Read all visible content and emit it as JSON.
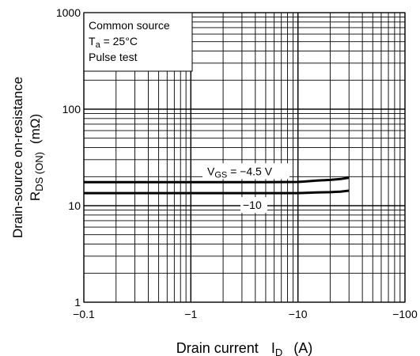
{
  "chart_data": {
    "type": "line",
    "x_scale": "log",
    "y_scale": "log",
    "xlim": [
      -0.1,
      -100
    ],
    "ylim": [
      1,
      1000
    ],
    "x_ticks": [
      {
        "value": -0.1,
        "label": "−0.1"
      },
      {
        "value": -1,
        "label": "−1"
      },
      {
        "value": -10,
        "label": "−10"
      },
      {
        "value": -100,
        "label": "−100"
      }
    ],
    "y_ticks": [
      {
        "value": 1,
        "label": "1"
      },
      {
        "value": 10,
        "label": "10"
      },
      {
        "value": 100,
        "label": "100"
      },
      {
        "value": 1000,
        "label": "1000"
      }
    ],
    "grid": true,
    "xlabel": {
      "main": "Drain current",
      "symbol": "I",
      "sub": "D",
      "unit": "(A)"
    },
    "ylabel": {
      "line1": "Drain-source on-resistance",
      "line2_symbol": "R",
      "line2_sub": "DS (ON)",
      "line2_unit": "(mΩ)"
    },
    "conditions": {
      "line1": "Common source",
      "line2_symbol": "T",
      "line2_sub": "a",
      "line2_rest": " = 25°C",
      "line3": "Pulse test"
    },
    "series": [
      {
        "label_symbol": "V",
        "label_sub": "GS",
        "label_rest": " = −4.5 V",
        "x": [
          -0.1,
          -1,
          -5,
          -10,
          -15,
          -20,
          -25,
          -30
        ],
        "y": [
          17.5,
          17.5,
          17.5,
          17.6,
          18.2,
          18.5,
          18.9,
          19.5
        ]
      },
      {
        "label_symbol": "",
        "label_sub": "",
        "label_rest": "−10",
        "x": [
          -0.1,
          -1,
          -5,
          -10,
          -15,
          -20,
          -25,
          -30
        ],
        "y": [
          13.5,
          13.5,
          13.5,
          13.5,
          13.7,
          13.8,
          14.0,
          14.3
        ]
      }
    ]
  }
}
